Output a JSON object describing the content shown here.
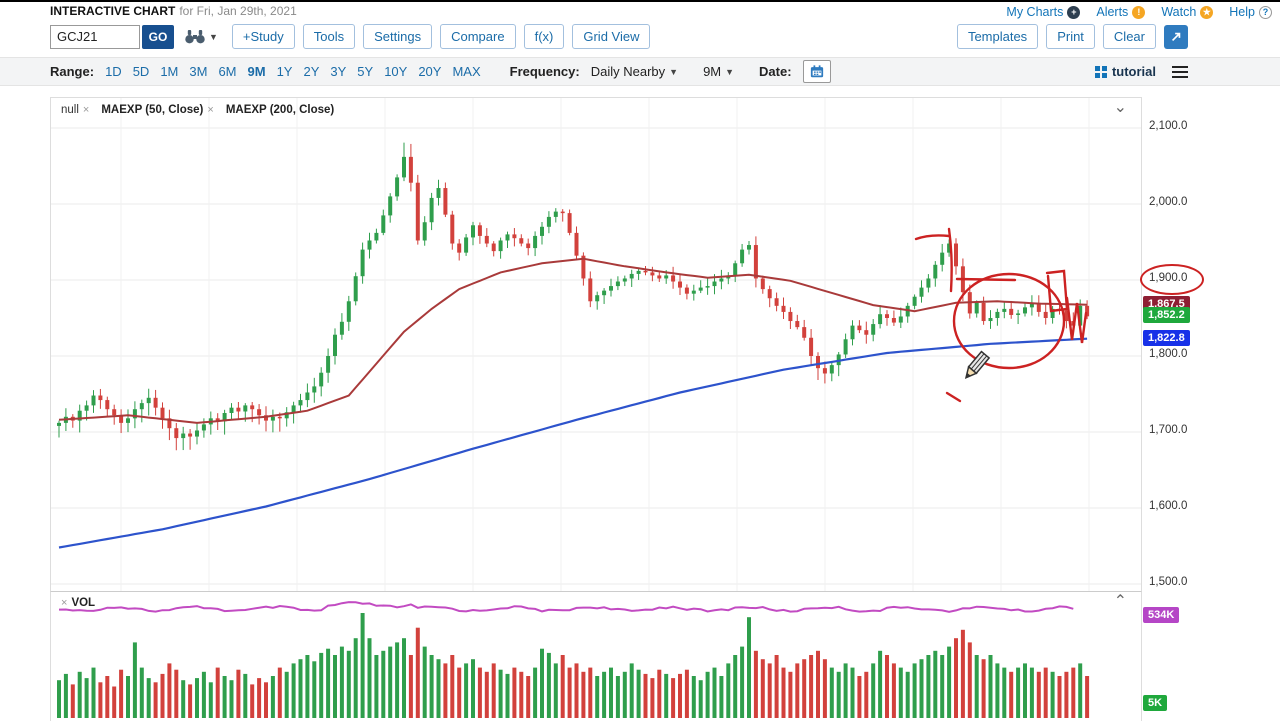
{
  "header": {
    "title": "INTERACTIVE CHART",
    "subtitle": "for Fri, Jan 29th, 2021",
    "links": [
      {
        "label": "My Charts",
        "icon": "plus-circle-icon",
        "glyph": "+",
        "icon_bg": "#2e3f50",
        "icon_color": "#ffffff"
      },
      {
        "label": "Alerts",
        "icon": "alert-icon",
        "glyph": "!",
        "icon_bg": "#f5a623",
        "icon_color": "#ffffff"
      },
      {
        "label": "Watch",
        "icon": "star-icon",
        "glyph": "★",
        "icon_bg": "#f5a623",
        "icon_color": "#ffffff"
      },
      {
        "label": "Help",
        "icon": "question-icon",
        "glyph": "?",
        "icon_bg": "#ffffff",
        "icon_color": "#1274b8",
        "icon_border": "#999999"
      }
    ]
  },
  "toolbar": {
    "symbol_value": "GCJ21",
    "go_label": "GO",
    "buttons": [
      "+Study",
      "Tools",
      "Settings",
      "Compare",
      "f(x)",
      "Grid View"
    ],
    "right_buttons": [
      "Templates",
      "Print",
      "Clear"
    ]
  },
  "range_bar": {
    "range_label": "Range:",
    "ranges": [
      "1D",
      "5D",
      "1M",
      "3M",
      "6M",
      "9M",
      "1Y",
      "2Y",
      "3Y",
      "5Y",
      "10Y",
      "20Y",
      "MAX"
    ],
    "active_range": "9M",
    "frequency_label": "Frequency:",
    "frequency_value": "Daily Nearby",
    "period_value": "9M",
    "date_label": "Date:",
    "tutorial_label": "tutorial"
  },
  "chart": {
    "legend": [
      {
        "label": "null",
        "closable": true
      },
      {
        "label": "MAEXP (50, Close)",
        "closable": true
      },
      {
        "label": "MAEXP (200, Close)",
        "closable": false
      }
    ],
    "price_badges": [
      {
        "label": "1,867.5",
        "value": 1867.5,
        "bg": "#8e1e33"
      },
      {
        "label": "1,852.2",
        "value": 1852.2,
        "bg": "#1fa83c"
      },
      {
        "label": "1,822.8",
        "value": 1822.8,
        "bg": "#1731e8"
      }
    ],
    "vol_badges": [
      {
        "label": "534K",
        "bg": "#b546c6"
      },
      {
        "label": "5K",
        "bg": "#1fa83c"
      }
    ],
    "circled_axis_label": "1,900.0",
    "annotations": {
      "color": "#cc2222",
      "paths": [
        "M865,141 q14,-5 33,-3",
        "M898,131 q4,28 2,62",
        "M958,176 c31,0 55,21 55,47 c0,26 -24,47 -55,47 c-31,0 -55,-21 -55,-47 c0,-26 24,-47 55,-47",
        "M906,181 l58,1",
        "M996,175 l17,-2 l3,38 l-16,2 l-3,-35",
        "M1016,200 l5,42 l5,-37 l5,40 l4,-30",
        "M896,295 l13,8"
      ]
    }
  },
  "volume": {
    "label": "VOL"
  },
  "chart_data": {
    "type": "candlestick",
    "symbol": "GCJ21",
    "frequency": "Daily Nearby",
    "range": "9M",
    "last_close": 1852.2,
    "ma50_last": 1867.5,
    "ma200_last": 1822.8,
    "open_first": 1708,
    "y_axis": {
      "min": 1500,
      "max": 2100,
      "tick_interval": 100,
      "ticks": [
        {
          "label": "2,100.0",
          "value": 2100
        },
        {
          "label": "2,000.0",
          "value": 2000
        },
        {
          "label": "1,900.0",
          "value": 1900
        },
        {
          "label": "1,800.0",
          "value": 1800
        },
        {
          "label": "1,700.0",
          "value": 1700
        },
        {
          "label": "1,600.0",
          "value": 1600
        },
        {
          "label": "1,500.0",
          "value": 1500
        }
      ]
    },
    "closes": [
      1712,
      1720,
      1715,
      1728,
      1735,
      1748,
      1742,
      1730,
      1722,
      1712,
      1718,
      1730,
      1738,
      1745,
      1732,
      1718,
      1705,
      1692,
      1698,
      1694,
      1702,
      1710,
      1718,
      1714,
      1725,
      1732,
      1727,
      1735,
      1730,
      1722,
      1715,
      1720,
      1718,
      1726,
      1735,
      1742,
      1752,
      1760,
      1778,
      1800,
      1828,
      1845,
      1872,
      1905,
      1940,
      1952,
      1962,
      1985,
      2010,
      2035,
      2062,
      2028,
      1952,
      1976,
      2008,
      2021,
      1986,
      1948,
      1936,
      1956,
      1972,
      1958,
      1948,
      1938,
      1952,
      1960,
      1955,
      1948,
      1942,
      1958,
      1970,
      1983,
      1990,
      1988,
      1962,
      1932,
      1902,
      1872,
      1880,
      1886,
      1892,
      1898,
      1902,
      1908,
      1912,
      1910,
      1906,
      1902,
      1906,
      1898,
      1890,
      1882,
      1886,
      1890,
      1892,
      1898,
      1902,
      1906,
      1922,
      1940,
      1946,
      1902,
      1888,
      1876,
      1866,
      1858,
      1846,
      1838,
      1824,
      1800,
      1784,
      1777,
      1788,
      1802,
      1822,
      1840,
      1834,
      1828,
      1842,
      1855,
      1850,
      1844,
      1852,
      1866,
      1878,
      1890,
      1902,
      1920,
      1936,
      1948,
      1918,
      1884,
      1856,
      1870,
      1846,
      1850,
      1858,
      1862,
      1854,
      1856,
      1864,
      1870,
      1858,
      1850,
      1862,
      1860,
      1846,
      1840,
      1866,
      1852.2
    ],
    "volumes": [
      180,
      210,
      160,
      220,
      190,
      240,
      170,
      200,
      150,
      230,
      200,
      360,
      240,
      190,
      170,
      210,
      260,
      230,
      180,
      160,
      190,
      220,
      170,
      240,
      200,
      180,
      230,
      210,
      160,
      190,
      170,
      200,
      240,
      220,
      260,
      280,
      300,
      270,
      310,
      330,
      300,
      340,
      320,
      380,
      500,
      380,
      300,
      320,
      340,
      360,
      380,
      300,
      430,
      340,
      300,
      280,
      260,
      300,
      240,
      260,
      280,
      240,
      220,
      260,
      230,
      210,
      240,
      220,
      200,
      240,
      330,
      310,
      260,
      300,
      240,
      260,
      220,
      240,
      200,
      220,
      240,
      200,
      220,
      260,
      230,
      210,
      190,
      230,
      210,
      190,
      210,
      230,
      200,
      180,
      220,
      240,
      200,
      260,
      300,
      340,
      480,
      320,
      280,
      260,
      300,
      240,
      220,
      260,
      280,
      300,
      320,
      280,
      240,
      220,
      260,
      240,
      200,
      220,
      260,
      320,
      300,
      260,
      240,
      220,
      260,
      280,
      300,
      320,
      300,
      340,
      380,
      420,
      360,
      300,
      280,
      300,
      260,
      240,
      220,
      240,
      260,
      240,
      220,
      240,
      220,
      200,
      220,
      240,
      260,
      200
    ],
    "ma50_anchors": [
      [
        0,
        1716
      ],
      [
        10,
        1722
      ],
      [
        20,
        1712
      ],
      [
        30,
        1720
      ],
      [
        36,
        1728
      ],
      [
        42,
        1748
      ],
      [
        46,
        1790
      ],
      [
        50,
        1832
      ],
      [
        54,
        1862
      ],
      [
        58,
        1888
      ],
      [
        64,
        1910
      ],
      [
        70,
        1922
      ],
      [
        76,
        1928
      ],
      [
        82,
        1918
      ],
      [
        88,
        1910
      ],
      [
        94,
        1903
      ],
      [
        100,
        1907
      ],
      [
        106,
        1899
      ],
      [
        112,
        1883
      ],
      [
        118,
        1867
      ],
      [
        124,
        1859
      ],
      [
        130,
        1870
      ],
      [
        136,
        1872
      ],
      [
        142,
        1869
      ],
      [
        149,
        1867.5
      ]
    ],
    "ma200_anchors": [
      [
        0,
        1548
      ],
      [
        15,
        1572
      ],
      [
        30,
        1602
      ],
      [
        45,
        1638
      ],
      [
        60,
        1678
      ],
      [
        75,
        1716
      ],
      [
        90,
        1752
      ],
      [
        105,
        1782
      ],
      [
        120,
        1804
      ],
      [
        135,
        1816
      ],
      [
        149,
        1822.8
      ]
    ],
    "vol_line_value": "534K",
    "vol_axis_bottom_value": "5K",
    "colors": {
      "up": "#2f9e4c",
      "down": "#d2413c",
      "ma50": "#a93a3a",
      "ma200": "#2d53cc",
      "vol_line": "#c24bc2",
      "annotation": "#cc2222"
    }
  }
}
